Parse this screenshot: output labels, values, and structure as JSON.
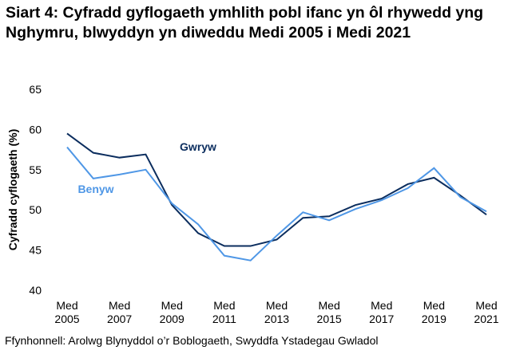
{
  "chart_data": {
    "type": "line",
    "title": "Siart 4: Cyfradd gyflogaeth ymhlith pobl ifanc yn ôl rhywedd yng Nghymru, blwyddyn yn diweddu Medi 2005 i Medi 2021",
    "y_label": "Cyfradd cyflogaeth (%)",
    "source": "Ffynhonnell: Arolwg Blynyddol o’r Boblogaeth, Swyddfa Ystadegau Gwladol",
    "categories": [
      "Med 2005",
      null,
      "Med 2007",
      null,
      "Med 2009",
      null,
      "Med 2011",
      null,
      "Med 2013",
      null,
      "Med 2015",
      null,
      "Med 2017",
      null,
      "Med 2019",
      null,
      "Med 2021"
    ],
    "series": [
      {
        "name": "Gwryw",
        "color": "#0b2d5e",
        "values": [
          59.5,
          57.1,
          56.5,
          56.9,
          50.6,
          47.1,
          45.5,
          45.5,
          46.3,
          49.0,
          49.2,
          50.6,
          51.4,
          53.2,
          54.0,
          51.8,
          49.4
        ]
      },
      {
        "name": "Benyw",
        "color": "#4f97e6",
        "values": [
          57.8,
          53.9,
          54.4,
          55.0,
          50.8,
          48.2,
          44.3,
          43.7,
          46.8,
          49.7,
          48.7,
          50.1,
          51.2,
          52.7,
          55.2,
          51.6,
          49.8
        ]
      }
    ],
    "ylim": [
      40,
      65
    ],
    "yticks": [
      40,
      45,
      50,
      55,
      60,
      65
    ],
    "grid": false
  }
}
